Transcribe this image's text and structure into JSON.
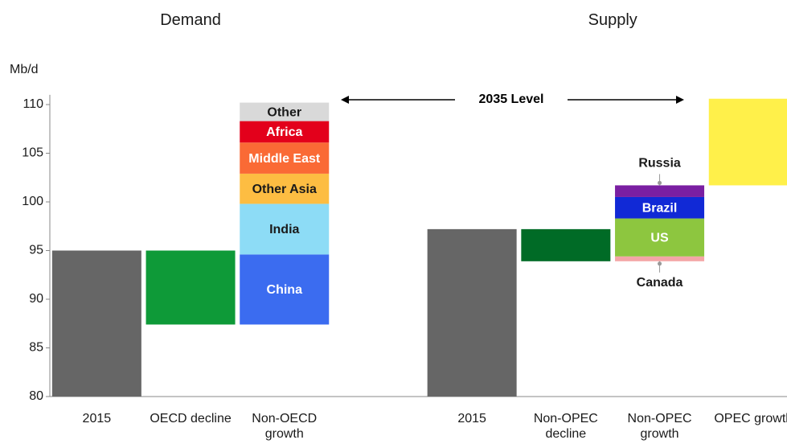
{
  "chart_data": {
    "type": "waterfall",
    "y_label": "Mb/d",
    "annotation": "2035 Level",
    "ylim": [
      80,
      111
    ],
    "yticks": [
      80,
      85,
      90,
      95,
      100,
      105,
      110
    ],
    "groups": [
      {
        "title": "Demand",
        "steps": [
          {
            "category": "2015",
            "segments": [
              {
                "value": 95,
                "color": "#666666"
              }
            ]
          },
          {
            "category": "OECD decline",
            "segments": [
              {
                "value": -7.6,
                "color": "#0e9a38"
              }
            ]
          },
          {
            "category": "Non-OECD growth",
            "segments": [
              {
                "name": "China",
                "value": 7.2,
                "color": "#3b6cf0",
                "label_color": "#ffffff"
              },
              {
                "name": "India",
                "value": 5.2,
                "color": "#8ddcf6",
                "label_color": "#1a1a1a"
              },
              {
                "name": "Other Asia",
                "value": 3.1,
                "color": "#fdbd42",
                "label_color": "#1a1a1a"
              },
              {
                "name": "Middle East",
                "value": 3.2,
                "color": "#fa6a35",
                "label_color": "#ffffff"
              },
              {
                "name": "Africa",
                "value": 2.2,
                "color": "#e3001b",
                "label_color": "#ffffff"
              },
              {
                "name": "Other",
                "value": 1.9,
                "color": "#d9d9d9",
                "label_color": "#1a1a1a"
              }
            ]
          }
        ]
      },
      {
        "title": "Supply",
        "steps": [
          {
            "category": "2015",
            "segments": [
              {
                "value": 97.2,
                "color": "#666666"
              }
            ]
          },
          {
            "category": "Non-OPEC decline",
            "segments": [
              {
                "value": -3.3,
                "color": "#006b26"
              }
            ]
          },
          {
            "category": "Non-OPEC growth",
            "segments": [
              {
                "name": "Canada",
                "value": 0.5,
                "color": "#f4a6a6",
                "label_color": "#1a1a1a"
              },
              {
                "name": "US",
                "value": 3.9,
                "color": "#8dc63f",
                "label_color": "#ffffff"
              },
              {
                "name": "Brazil",
                "value": 2.2,
                "color": "#1129d6",
                "label_color": "#ffffff"
              },
              {
                "name": "Russia",
                "value": 1.2,
                "color": "#7a1fa2",
                "label_color": "#1a1a1a"
              }
            ]
          },
          {
            "category": "OPEC growth",
            "segments": [
              {
                "value": 8.9,
                "color": "#fff04a"
              }
            ]
          }
        ]
      }
    ]
  }
}
